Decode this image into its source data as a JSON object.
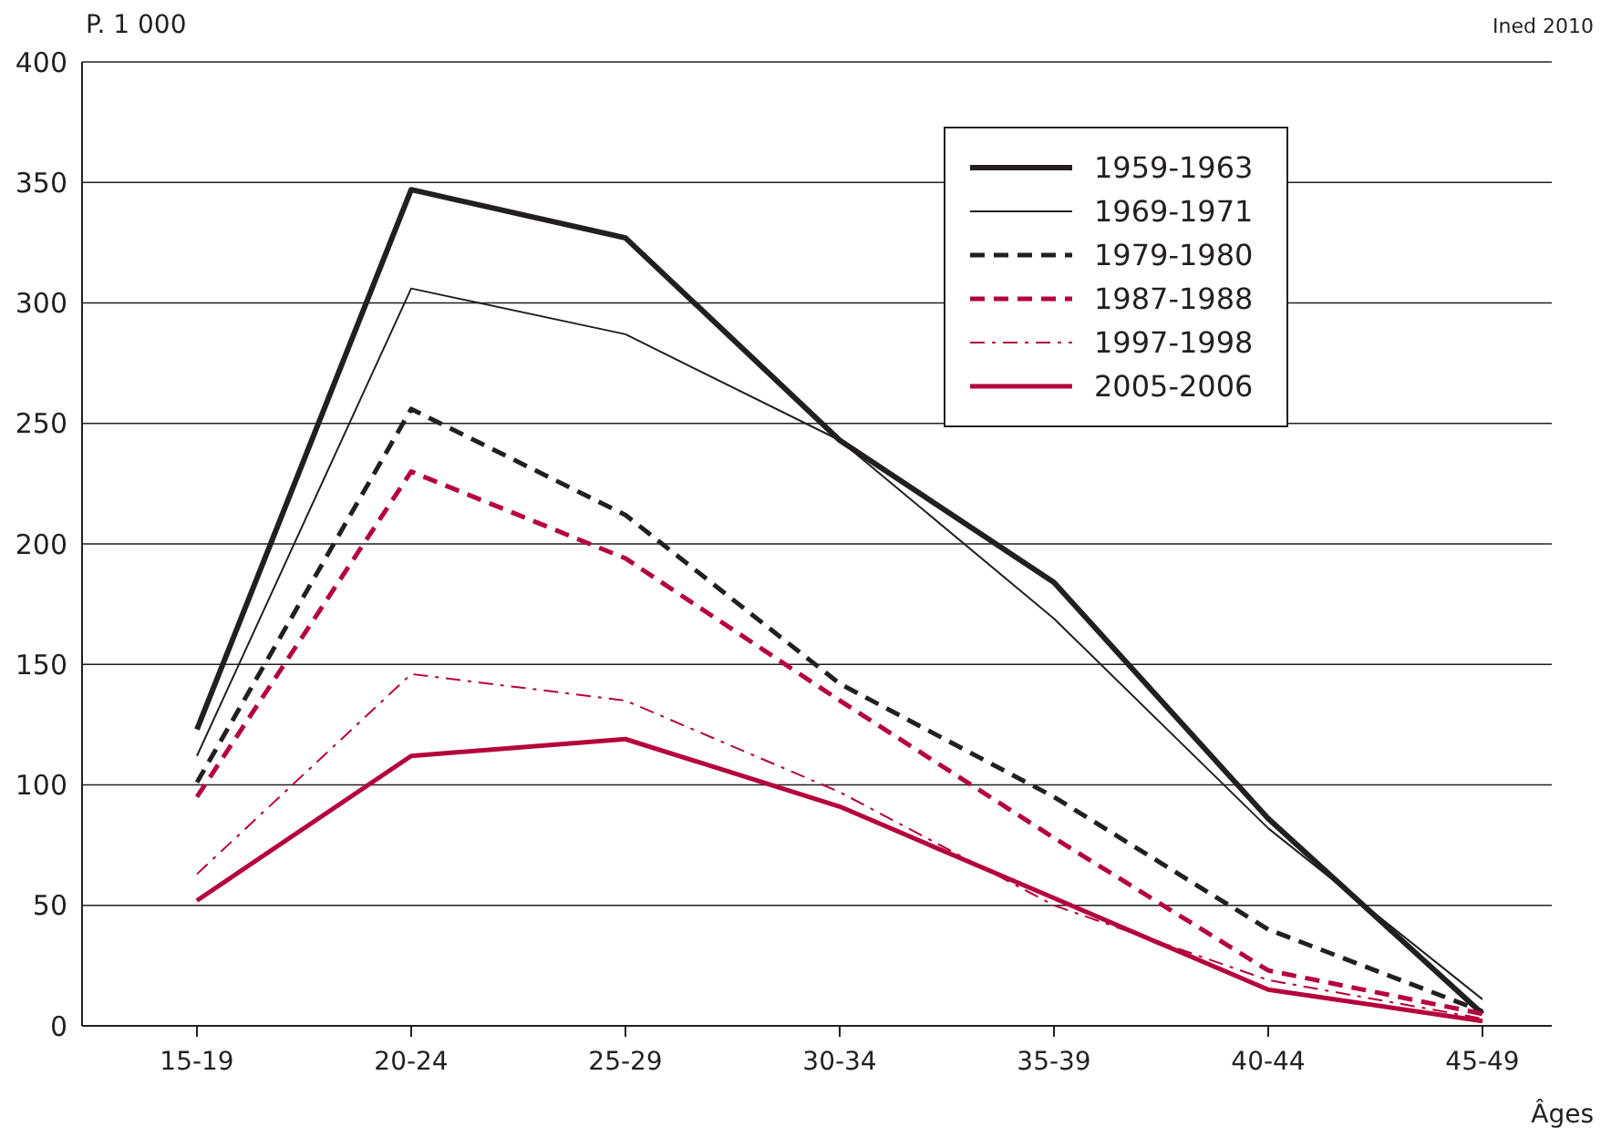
{
  "chart_data": {
    "type": "line",
    "ylabel": "P. 1 000",
    "xlabel": "Âges",
    "annotations": [
      "Ined 2010"
    ],
    "categories": [
      "15-19",
      "20-24",
      "25-29",
      "30-34",
      "35-39",
      "40-44",
      "45-49"
    ],
    "ylim": [
      0,
      400
    ],
    "yticks": [
      0,
      50,
      100,
      150,
      200,
      250,
      300,
      350,
      400
    ],
    "grid": "y",
    "legend": "top right",
    "marker": "none",
    "series": [
      {
        "name": "1959-1963",
        "color": "#231f20",
        "line_style": "solid",
        "values": [
          123,
          347,
          327,
          243,
          184,
          86,
          5
        ]
      },
      {
        "name": "1969-1971",
        "color": "#231f20",
        "line_style": "solid",
        "values": [
          112,
          306,
          287,
          243,
          169,
          82,
          11
        ]
      },
      {
        "name": "1979-1980",
        "color": "#231f20",
        "line_style": "dashed",
        "values": [
          101,
          256,
          212,
          142,
          95,
          40,
          6
        ]
      },
      {
        "name": "1987-1988",
        "color": "#b5003c",
        "line_style": "dashed",
        "values": [
          95,
          230,
          194,
          135,
          78,
          23,
          5
        ]
      },
      {
        "name": "1997-1998",
        "color": "#b5003c",
        "line_style": "dashdot",
        "values": [
          63,
          146,
          135,
          97,
          50,
          19,
          3
        ]
      },
      {
        "name": "2005-2006",
        "color": "#b5003c",
        "line_style": "solid",
        "values": [
          52,
          112,
          119,
          91,
          53,
          15,
          2
        ]
      }
    ]
  }
}
